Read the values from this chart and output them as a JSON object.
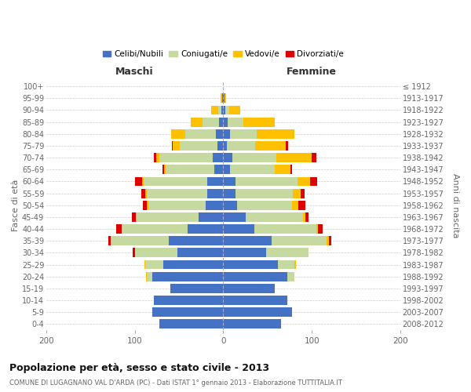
{
  "age_groups": [
    "0-4",
    "5-9",
    "10-14",
    "15-19",
    "20-24",
    "25-29",
    "30-34",
    "35-39",
    "40-44",
    "45-49",
    "50-54",
    "55-59",
    "60-64",
    "65-69",
    "70-74",
    "75-79",
    "80-84",
    "85-89",
    "90-94",
    "95-99",
    "100+"
  ],
  "birth_years": [
    "2008-2012",
    "2003-2007",
    "1998-2002",
    "1993-1997",
    "1988-1992",
    "1983-1987",
    "1978-1982",
    "1973-1977",
    "1968-1972",
    "1963-1967",
    "1958-1962",
    "1953-1957",
    "1948-1952",
    "1943-1947",
    "1938-1942",
    "1933-1937",
    "1928-1932",
    "1923-1927",
    "1918-1922",
    "1913-1917",
    "≤ 1912"
  ],
  "male_celibi": [
    72,
    80,
    78,
    60,
    80,
    68,
    52,
    62,
    40,
    28,
    20,
    18,
    18,
    10,
    12,
    7,
    8,
    5,
    2,
    1,
    0
  ],
  "male_coniugati": [
    0,
    0,
    0,
    0,
    6,
    20,
    48,
    65,
    75,
    70,
    65,
    68,
    72,
    55,
    60,
    42,
    35,
    18,
    4,
    0,
    0
  ],
  "male_vedovi": [
    0,
    0,
    0,
    0,
    1,
    1,
    0,
    0,
    0,
    1,
    1,
    2,
    2,
    2,
    4,
    8,
    16,
    14,
    8,
    2,
    0
  ],
  "male_divorziati": [
    0,
    0,
    0,
    0,
    0,
    0,
    2,
    3,
    6,
    4,
    5,
    5,
    8,
    2,
    2,
    1,
    0,
    0,
    0,
    0,
    0
  ],
  "female_nubili": [
    65,
    78,
    72,
    58,
    72,
    62,
    48,
    55,
    35,
    25,
    16,
    14,
    14,
    8,
    10,
    4,
    8,
    5,
    2,
    1,
    0
  ],
  "female_coniugate": [
    0,
    0,
    0,
    0,
    8,
    18,
    48,
    62,
    70,
    65,
    62,
    65,
    70,
    50,
    50,
    32,
    30,
    18,
    5,
    0,
    0
  ],
  "female_vedove": [
    0,
    0,
    0,
    0,
    0,
    2,
    0,
    2,
    2,
    3,
    7,
    8,
    14,
    18,
    40,
    35,
    42,
    35,
    12,
    2,
    0
  ],
  "female_divorziate": [
    0,
    0,
    0,
    0,
    0,
    0,
    0,
    3,
    5,
    3,
    8,
    5,
    8,
    2,
    5,
    2,
    0,
    0,
    0,
    0,
    0
  ],
  "color_celibi": "#4472c4",
  "color_coniugati": "#c6d9a0",
  "color_vedovi": "#ffc000",
  "color_divorziati": "#dd0000",
  "title_main": "Popolazione per età, sesso e stato civile - 2013",
  "title_sub": "COMUNE DI LUGAGNANO VAL D'ARDA (PC) - Dati ISTAT 1° gennaio 2013 - Elaborazione TUTTITALIA.IT",
  "label_maschi": "Maschi",
  "label_femmine": "Femmine",
  "ylabel_left": "Fasce di età",
  "ylabel_right": "Anni di nascita",
  "legend_labels": [
    "Celibi/Nubili",
    "Coniugati/e",
    "Vedovi/e",
    "Divorziati/e"
  ],
  "xlim": 200,
  "bar_height": 0.78,
  "bg_color": "#ffffff",
  "grid_color": "#cccccc",
  "text_color": "#666666",
  "header_color": "#333333"
}
